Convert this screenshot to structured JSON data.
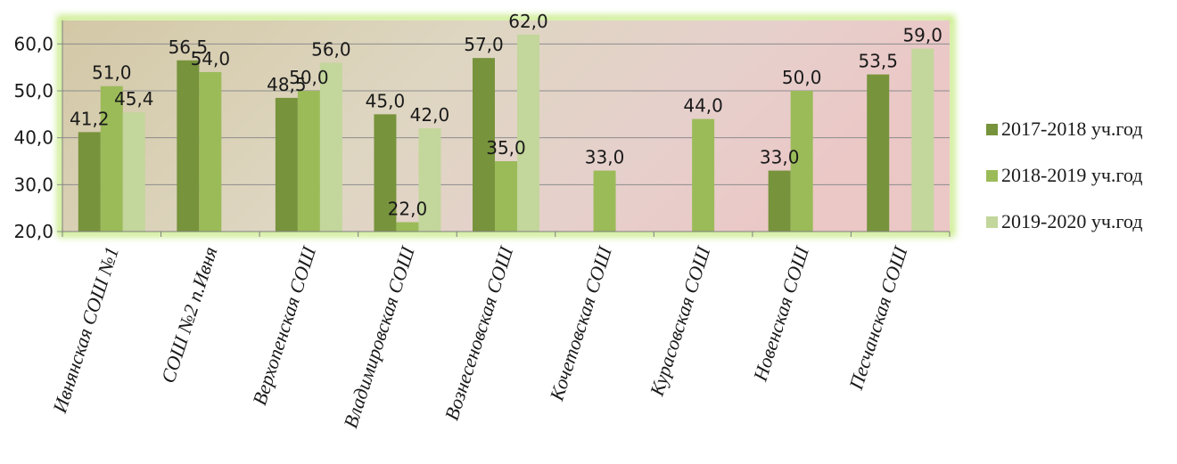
{
  "chart_data": {
    "type": "bar",
    "title": "",
    "xlabel": "",
    "ylabel": "",
    "ylim": [
      20,
      65
    ],
    "yticks": [
      "20,0",
      "30,0",
      "40,0",
      "50,0",
      "60,0"
    ],
    "ytick_values": [
      20,
      30,
      40,
      50,
      60
    ],
    "grid": true,
    "legend_position": "right",
    "categories": [
      "Ивнянская СОШ №1",
      "СОШ №2 п.Ивня",
      "Верхопенская СОШ",
      "Владимировская СОШ",
      "Вознесеновская СОШ",
      "Кочетовская СОШ",
      "Курасовская СОШ",
      "Новенская СОШ",
      "Песчанская СОШ"
    ],
    "series": [
      {
        "name": "2017-2018 уч.год",
        "color": "#77933c",
        "values": [
          41.2,
          56.5,
          48.5,
          45.0,
          57.0,
          null,
          null,
          33.0,
          53.5
        ],
        "labels": [
          "41,2",
          "56,5",
          "48,5",
          "45,0",
          "57,0",
          "",
          "",
          "33,0",
          "53,5"
        ]
      },
      {
        "name": "2018-2019 уч.год",
        "color": "#9bbb59",
        "values": [
          51.0,
          54.0,
          50.0,
          22.0,
          35.0,
          33.0,
          44.0,
          50.0,
          null
        ],
        "labels": [
          "51,0",
          "54,0",
          "50,0",
          "22,0",
          "35,0",
          "33,0",
          "44,0",
          "50,0",
          ""
        ]
      },
      {
        "name": "2019-2020 уч.год",
        "color": "#c3d69b",
        "values": [
          45.4,
          null,
          56.0,
          42.0,
          62.0,
          null,
          null,
          null,
          59.0
        ],
        "labels": [
          "45,4",
          "",
          "56,0",
          "42,0",
          "62,0",
          "",
          "",
          "",
          "59,0"
        ]
      }
    ]
  }
}
